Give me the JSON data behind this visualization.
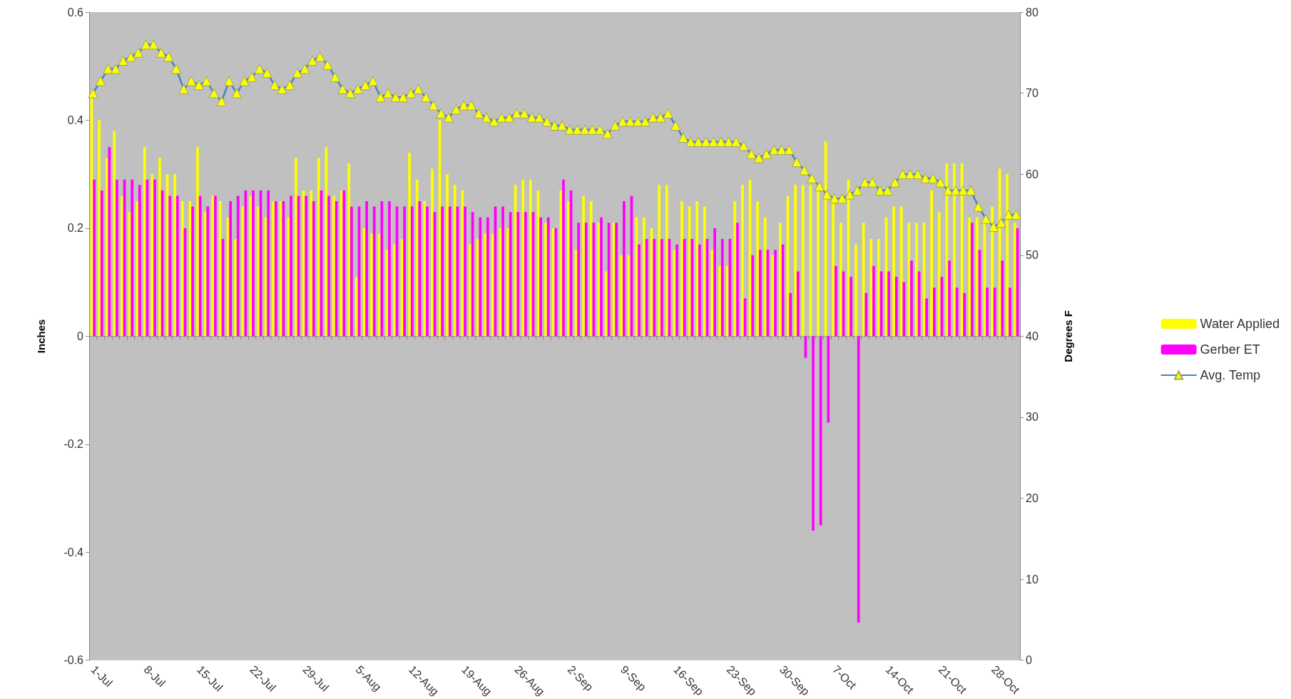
{
  "chart_data": {
    "type": "bar",
    "ylabel": "Inches",
    "y2label": "Degrees F",
    "categories": [
      "1-Jul",
      null,
      null,
      null,
      null,
      null,
      null,
      "8-Jul",
      null,
      null,
      null,
      null,
      null,
      null,
      "15-Jul",
      null,
      null,
      null,
      null,
      null,
      null,
      "22-Jul",
      null,
      null,
      null,
      null,
      null,
      null,
      "29-Jul",
      null,
      null,
      null,
      null,
      null,
      null,
      "5-Aug",
      null,
      null,
      null,
      null,
      null,
      null,
      "12-Aug",
      null,
      null,
      null,
      null,
      null,
      null,
      "19-Aug",
      null,
      null,
      null,
      null,
      null,
      null,
      "26-Aug",
      null,
      null,
      null,
      null,
      null,
      null,
      "2-Sep",
      null,
      null,
      null,
      null,
      null,
      null,
      "9-Sep",
      null,
      null,
      null,
      null,
      null,
      null,
      "16-Sep",
      null,
      null,
      null,
      null,
      null,
      null,
      "23-Sep",
      null,
      null,
      null,
      null,
      null,
      null,
      "30-Sep",
      null,
      null,
      null,
      null,
      null,
      null,
      "7-Oct",
      null,
      null,
      null,
      null,
      null,
      null,
      "14-Oct",
      null,
      null,
      null,
      null,
      null,
      null,
      "21-Oct",
      null,
      null,
      null,
      null,
      null,
      null,
      "28-Oct",
      null,
      null,
      null
    ],
    "series": [
      {
        "name": "Water Applied",
        "color": "#ffff00",
        "values": [
          0.44,
          0.4,
          0.33,
          0.38,
          0.26,
          0.23,
          0.25,
          0.35,
          0.3,
          0.33,
          0.3,
          0.3,
          0.25,
          0.25,
          0.35,
          0.23,
          0.26,
          0.25,
          0.22,
          0.18,
          0.24,
          0.26,
          0.24,
          0.22,
          0.25,
          0.25,
          0.22,
          0.33,
          0.27,
          0.27,
          0.33,
          0.35,
          0.26,
          0.27,
          0.32,
          0.11,
          0.2,
          0.19,
          0.19,
          0.16,
          0.17,
          0.18,
          0.34,
          0.29,
          0.25,
          0.31,
          0.4,
          0.3,
          0.28,
          0.27,
          0.17,
          0.18,
          0.19,
          0.19,
          0.2,
          0.2,
          0.28,
          0.29,
          0.29,
          0.27,
          0.21,
          0.2,
          0.27,
          0.25,
          0.16,
          0.26,
          0.25,
          0.21,
          0.12,
          0.21,
          0.15,
          0.15,
          0.22,
          0.22,
          0.2,
          0.28,
          0.28,
          0.16,
          0.25,
          0.24,
          0.25,
          0.24,
          0.16,
          0.13,
          0.13,
          0.25,
          0.28,
          0.29,
          0.25,
          0.22,
          0.15,
          0.21,
          0.26,
          0.28,
          0.28,
          0.28,
          0.27,
          0.36,
          0.26,
          0.21,
          0.29,
          0.17,
          0.21,
          0.18,
          0.18,
          0.22,
          0.24,
          0.24,
          0.21,
          0.21,
          0.21,
          0.27,
          0.23,
          0.32,
          0.32,
          0.32,
          0.22,
          0.22,
          0.21,
          0.24,
          0.31,
          0.3,
          0.21
        ]
      },
      {
        "name": "Gerber ET",
        "color": "#ff00ff",
        "values": [
          0.29,
          0.27,
          0.35,
          0.29,
          0.29,
          0.29,
          0.28,
          0.29,
          0.29,
          0.27,
          0.26,
          0.26,
          0.2,
          0.24,
          0.26,
          0.24,
          0.26,
          0.18,
          0.25,
          0.26,
          0.27,
          0.27,
          0.27,
          0.27,
          0.25,
          0.25,
          0.26,
          0.26,
          0.26,
          0.25,
          0.27,
          0.26,
          0.25,
          0.27,
          0.24,
          0.24,
          0.25,
          0.24,
          0.25,
          0.25,
          0.24,
          0.24,
          0.24,
          0.25,
          0.24,
          0.23,
          0.24,
          0.24,
          0.24,
          0.24,
          0.23,
          0.22,
          0.22,
          0.24,
          0.24,
          0.23,
          0.23,
          0.23,
          0.23,
          0.22,
          0.22,
          0.2,
          0.29,
          0.27,
          0.21,
          0.21,
          0.21,
          0.22,
          0.21,
          0.21,
          0.25,
          0.26,
          0.17,
          0.18,
          0.18,
          0.18,
          0.18,
          0.17,
          0.18,
          0.18,
          0.17,
          0.18,
          0.2,
          0.18,
          0.18,
          0.21,
          0.07,
          0.15,
          0.16,
          0.16,
          0.16,
          0.17,
          0.08,
          0.12,
          -0.04,
          -0.36,
          -0.35,
          -0.16,
          0.13,
          0.12,
          0.11,
          -0.53,
          0.08,
          0.13,
          0.12,
          0.12,
          0.11,
          0.1,
          0.14,
          0.12,
          0.07,
          0.09,
          0.11,
          0.14,
          0.09,
          0.08,
          0.21,
          0.16,
          0.09,
          0.09,
          0.14,
          0.09,
          0.2
        ]
      },
      {
        "name": "Avg. Temp",
        "type": "line",
        "axis": "y2",
        "color": "#4f81bd",
        "values": [
          70,
          71.5,
          73,
          73,
          74,
          74.5,
          75,
          76,
          76,
          75,
          74.5,
          73,
          70.5,
          71.5,
          71,
          71.5,
          70,
          69,
          71.5,
          70,
          71.5,
          72,
          73,
          72.5,
          71,
          70.5,
          71,
          72.5,
          73,
          74,
          74.5,
          73.5,
          72,
          70.5,
          70,
          70.5,
          71,
          71.5,
          69.5,
          70,
          69.5,
          69.5,
          70,
          70.5,
          69.5,
          68.5,
          67.5,
          67,
          68,
          68.5,
          68.5,
          67.5,
          67,
          66.5,
          67,
          67,
          67.5,
          67.5,
          67,
          67,
          66.5,
          66,
          66,
          65.5,
          65.5,
          65.5,
          65.5,
          65.5,
          65,
          66,
          66.5,
          66.5,
          66.5,
          66.5,
          67,
          67,
          67.5,
          66,
          64.5,
          64,
          64,
          64,
          64,
          64,
          64,
          64,
          63.5,
          62.5,
          62,
          62.5,
          63,
          63,
          63,
          61.5,
          60.5,
          59.5,
          58.5,
          57.5,
          57,
          57,
          57.5,
          58,
          59,
          59,
          58,
          58,
          59,
          60,
          60,
          60,
          59.5,
          59.5,
          59,
          58,
          58,
          58,
          58,
          56,
          54.5,
          53.5,
          54,
          55,
          55
        ]
      }
    ],
    "ylim": [
      -0.6,
      0.6
    ],
    "yticks": [
      -0.6,
      -0.4,
      -0.2,
      0,
      0.2,
      0.4,
      0.6
    ],
    "y2lim": [
      0,
      80
    ],
    "y2ticks": [
      0,
      10,
      20,
      30,
      40,
      50,
      60,
      70,
      80
    ],
    "marker": "triangle",
    "legend": "right"
  }
}
